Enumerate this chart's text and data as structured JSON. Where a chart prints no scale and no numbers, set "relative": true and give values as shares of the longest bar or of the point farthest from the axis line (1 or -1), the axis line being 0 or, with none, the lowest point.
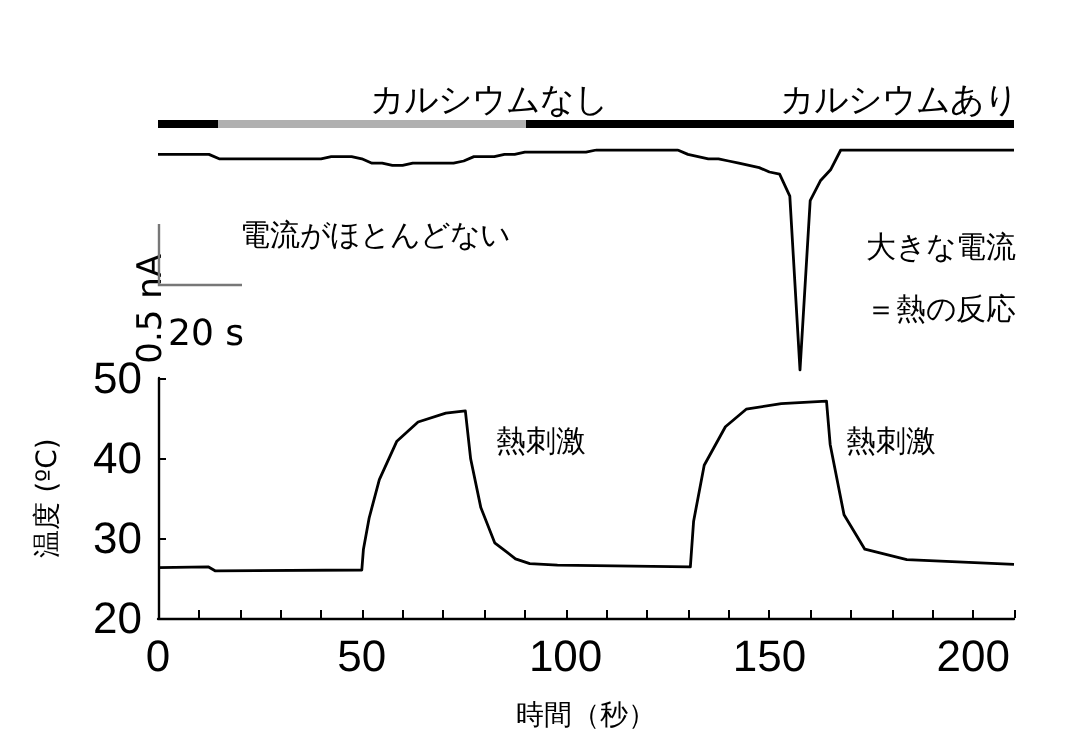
{
  "chart_data": [
    {
      "type": "line",
      "relative": true,
      "categories": [
        null,
        null,
        null,
        null,
        null,
        null,
        null,
        null,
        null,
        null,
        null,
        null,
        null,
        null,
        null,
        null,
        null,
        null,
        null,
        null,
        null,
        null,
        null,
        null,
        null,
        null,
        null,
        null,
        null,
        null,
        null,
        null,
        null,
        null,
        null,
        null,
        null,
        null,
        null,
        null,
        null,
        null,
        null,
        null,
        null,
        null,
        null,
        null,
        null,
        null,
        null,
        null,
        null,
        null,
        null,
        null,
        null,
        null,
        null,
        null,
        null,
        null,
        null,
        null,
        null,
        null,
        null,
        null,
        null,
        null,
        null,
        null,
        null,
        null,
        null,
        null,
        null,
        null,
        null,
        null,
        null,
        null,
        null,
        null,
        null
      ],
      "series": [
        {
          "color": "#000000",
          "values": [
            0.98,
            0.98,
            0.98,
            0.98,
            0.98,
            0.98,
            0.96,
            0.96,
            0.96,
            0.96,
            0.96,
            0.96,
            0.96,
            0.96,
            0.96,
            0.96,
            0.96,
            0.97,
            0.97,
            0.97,
            0.96,
            0.94,
            0.94,
            0.93,
            0.93,
            0.94,
            0.94,
            0.94,
            0.94,
            0.94,
            0.95,
            0.97,
            0.97,
            0.97,
            0.98,
            0.98,
            0.99,
            0.99,
            0.99,
            0.99,
            0.99,
            0.99,
            0.99,
            1.0,
            1.0,
            1.0,
            1.0,
            1.0,
            1.0,
            1.0,
            1.0,
            1.0,
            0.98,
            0.97,
            0.96,
            0.96,
            0.95,
            0.94,
            0.93,
            0.92,
            0.9,
            0.89,
            0.79,
            0,
            0.77,
            0.86,
            0.91,
            1.0,
            1.0,
            1.0,
            1.0,
            1.0,
            1.0,
            1.0,
            1.0,
            1.0,
            1.0,
            1.0,
            1.0,
            1.0,
            1.0,
            1.0,
            1.0,
            1.0,
            1.0
          ]
        }
      ],
      "annotations": [
        "カルシウムなし",
        "カルシウムあり",
        "0.5 nA",
        "20 s",
        "電流がほとんどない",
        "大きな電流",
        "＝熱の反応"
      ]
    },
    {
      "type": "line",
      "xlabel": "時間（秒）",
      "ylabel": "温度 (ºC)",
      "xlim": [
        0,
        210
      ],
      "ylim": [
        20,
        50
      ],
      "xticks": [
        0,
        {
          "value": 10,
          "label": null
        },
        {
          "value": 20,
          "label": null
        },
        {
          "value": 30,
          "label": null
        },
        {
          "value": 40,
          "label": null
        },
        50,
        {
          "value": 60,
          "label": null
        },
        {
          "value": 70,
          "label": null
        },
        {
          "value": 80,
          "label": null
        },
        {
          "value": 90,
          "label": null
        },
        100,
        {
          "value": 110,
          "label": null
        },
        {
          "value": 120,
          "label": null
        },
        {
          "value": 130,
          "label": null
        },
        {
          "value": 140,
          "label": null
        },
        150,
        {
          "value": 160,
          "label": null
        },
        {
          "value": 170,
          "label": null
        },
        {
          "value": 180,
          "label": null
        },
        {
          "value": 190,
          "label": null
        },
        200,
        {
          "value": 210,
          "label": null
        }
      ],
      "yticks": [
        20,
        30,
        40,
        50
      ],
      "x": [
        0,
        12.3,
        14,
        50,
        50.4,
        51.8,
        54.3,
        58.6,
        63.8,
        70.6,
        75.4,
        76.7,
        79.2,
        82.6,
        87.7,
        91.2,
        98,
        130.6,
        131.4,
        134,
        139.2,
        144.3,
        152.9,
        164,
        164.9,
        168.3,
        173.4,
        183.7,
        210
      ],
      "series": [
        {
          "color": "#000000",
          "values": [
            26.3,
            26.4,
            25.9,
            26.0,
            28.6,
            32.5,
            37.3,
            42.1,
            44.5,
            45.6,
            45.9,
            39.9,
            33.8,
            29.4,
            27.4,
            26.8,
            26.6,
            26.4,
            32.1,
            39.1,
            43.9,
            46.1,
            46.8,
            47.1,
            41.7,
            32.9,
            28.6,
            27.3,
            26.7
          ]
        }
      ],
      "annotations": [
        "熱刺激",
        "熱刺激"
      ]
    }
  ]
}
